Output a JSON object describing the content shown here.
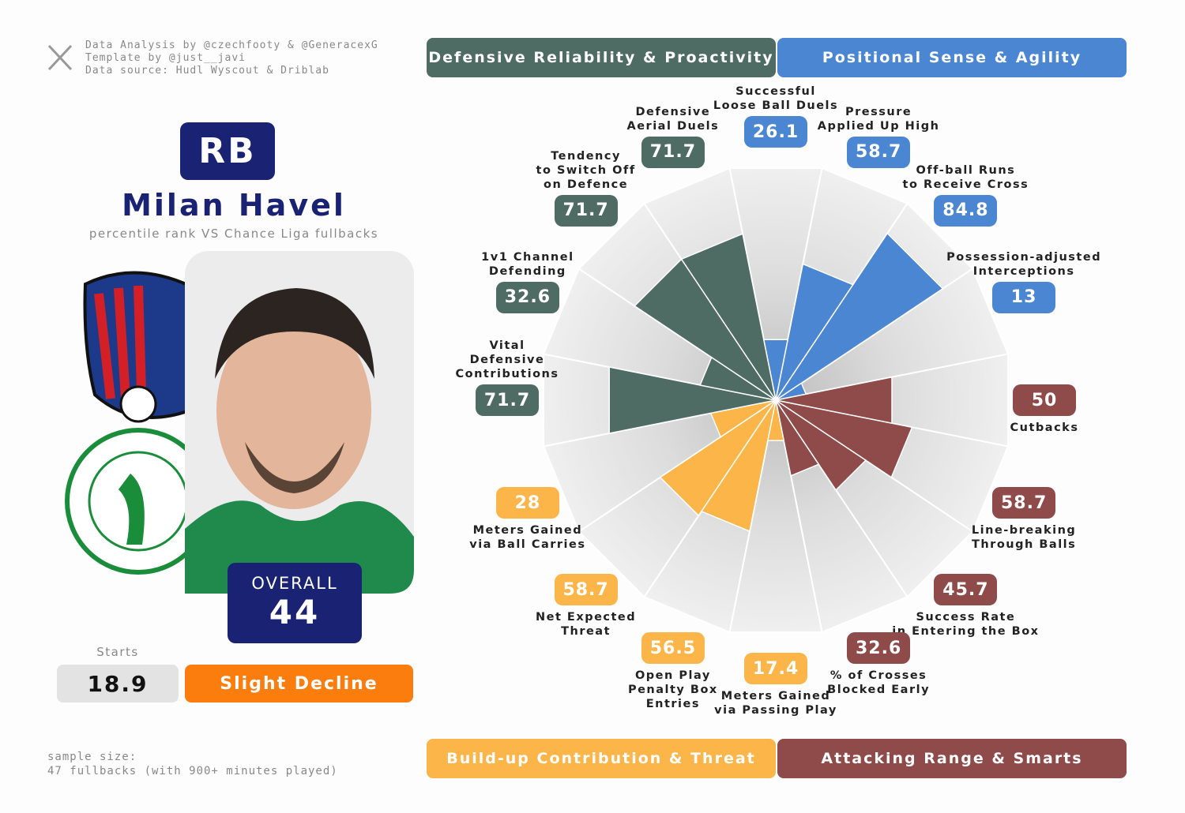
{
  "credits": [
    "Data Analysis by @czechfooty & @GeneracexG",
    "Template by @just__javi",
    "Data source: Hudl Wyscout & Driblab"
  ],
  "position": "RB",
  "player": "Milan Havel",
  "subtitle": "percentile rank VS Chance Liga fullbacks",
  "overall_label": "OVERALL",
  "overall": 44,
  "starts_label": "Starts",
  "starts": 18.9,
  "trend": "Slight Decline",
  "sample": [
    "sample size:",
    "47 fullbacks (with 900+ minutes played)"
  ],
  "chart_data": {
    "type": "pizza",
    "ylim": [
      0,
      100
    ],
    "series": [
      {
        "name": "Positional Sense & Agility",
        "color": "#4a86d1",
        "categories": [
          "Successful\nLoose Ball Duels",
          "Pressure\nApplied Up High",
          "Off-ball Runs\nto Receive Cross",
          "Possession-adjusted\nInterceptions"
        ],
        "values": [
          26.1,
          58.7,
          84.8,
          13
        ]
      },
      {
        "name": "Attacking Range & Smarts",
        "color": "#8f4a4a",
        "categories": [
          "Cutbacks",
          "Line-breaking\nThrough Balls",
          "Success Rate\nin Entering the Box",
          "% of Crosses\nBlocked Early"
        ],
        "values": [
          50,
          58.7,
          45.7,
          32.6
        ]
      },
      {
        "name": "Build-up Contribution & Threat",
        "color": "#fbb549",
        "categories": [
          "Meters Gained\nvia Passing Play",
          "Open Play\nPenalty Box\nEntries",
          "Net Expected\nThreat",
          "Meters Gained\nvia Ball Carries"
        ],
        "values": [
          17.4,
          56.5,
          58.7,
          28
        ]
      },
      {
        "name": "Defensive Reliability & Proactivity",
        "color": "#4e6b64",
        "categories": [
          "Vital\nDefensive\nContributions",
          "1v1 Channel\nDefending",
          "Tendency\nto Switch Off\non Defence",
          "Defensive\nAerial Duels"
        ],
        "values": [
          71.7,
          32.6,
          71.7,
          71.7
        ]
      }
    ]
  }
}
